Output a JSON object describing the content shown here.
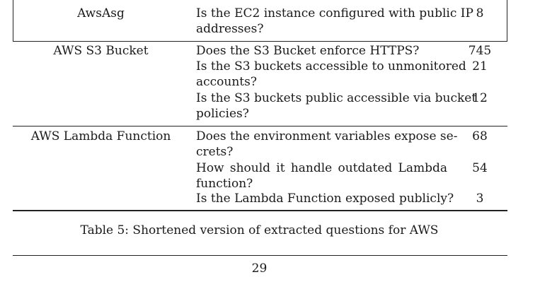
{
  "table": {
    "rows": [
      {
        "resource": "AwsAsg",
        "questions": [
          {
            "lines": [
              "Is the EC2 instance configured with public IP",
              "addresses?"
            ],
            "count": "8"
          }
        ]
      },
      {
        "resource": "AWS S3 Bucket",
        "questions": [
          {
            "lines": [
              "Does the S3 Bucket enforce HTTPS?"
            ],
            "count": "745"
          },
          {
            "lines": [
              "Is the S3 buckets accessible to unmonitored",
              "accounts?"
            ],
            "count": "21"
          },
          {
            "lines": [
              "Is the S3 buckets public accessible via bucket",
              "policies?"
            ],
            "count": "12"
          }
        ]
      },
      {
        "resource": "AWS Lambda Function",
        "questions": [
          {
            "lines": [
              "Does the environment variables expose se-",
              "crets?"
            ],
            "count": "68"
          },
          {
            "lines": [
              "How should it handle outdated Lambda",
              "function?"
            ],
            "count": "54"
          },
          {
            "lines": [
              "Is the Lambda Function exposed publicly?"
            ],
            "count": "3"
          }
        ]
      }
    ]
  },
  "caption": "Table 5: Shortened version of extracted questions for AWS",
  "page_number": "29"
}
